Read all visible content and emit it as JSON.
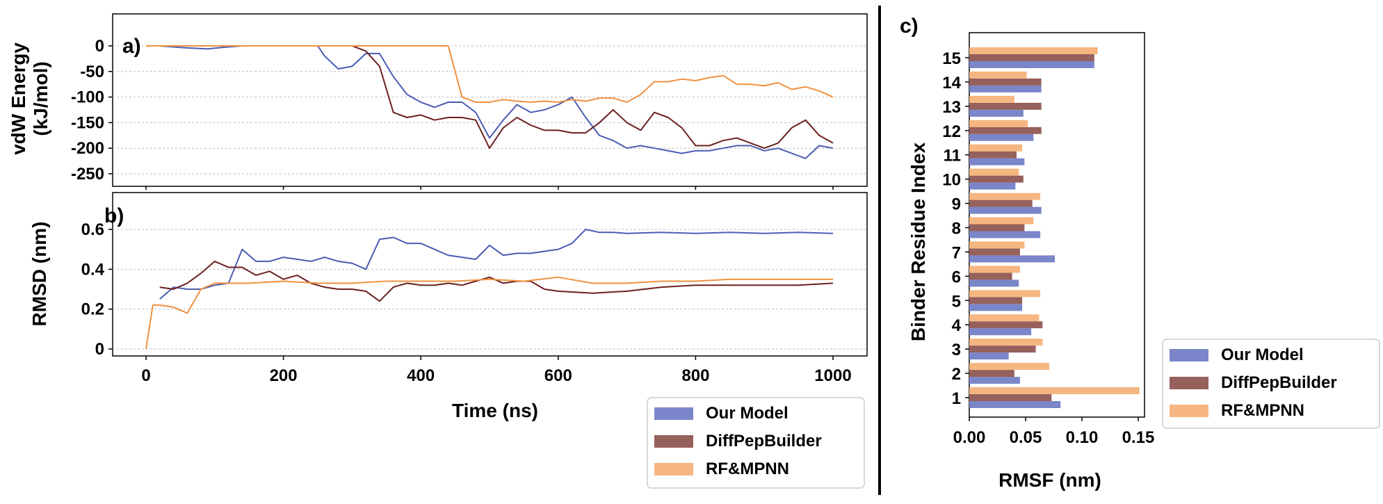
{
  "colors": {
    "our_model": "#4a5cb3",
    "our_model_legend": "#7a86c9",
    "diffpep": "#6b1f1f",
    "diffpep_legend": "#96605c",
    "rf": "#f0913f",
    "rf_legend": "#f5b681"
  },
  "legend_entries": [
    "Our Model",
    "DiffPepBuilder",
    "RF&MPNN"
  ],
  "chart_data": [
    {
      "id": "a",
      "type": "line",
      "panel_label": "a)",
      "ylabel_lines": [
        "vdW Energy",
        "(kJ/mol)"
      ],
      "xlim": [
        0,
        1000
      ],
      "ylim": [
        -250,
        0
      ],
      "yticks": [
        0,
        -50,
        -100,
        -150,
        -200,
        -250
      ],
      "grid": true,
      "series": [
        {
          "name": "Our Model",
          "x": [
            0,
            20,
            40,
            60,
            90,
            110,
            140,
            160,
            200,
            250,
            260,
            280,
            300,
            320,
            340,
            360,
            380,
            400,
            420,
            440,
            460,
            480,
            500,
            520,
            540,
            560,
            580,
            600,
            620,
            640,
            660,
            680,
            700,
            720,
            740,
            760,
            780,
            800,
            820,
            840,
            860,
            880,
            900,
            920,
            940,
            960,
            980,
            1000
          ],
          "y": [
            0,
            0,
            -2,
            -4,
            -6,
            -3,
            0,
            0,
            0,
            0,
            -20,
            -45,
            -40,
            -15,
            -15,
            -60,
            -95,
            -110,
            -120,
            -110,
            -110,
            -130,
            -180,
            -145,
            -115,
            -130,
            -125,
            -115,
            -100,
            -140,
            -175,
            -185,
            -200,
            -195,
            -200,
            -205,
            -210,
            -205,
            -205,
            -200,
            -195,
            -195,
            -205,
            -200,
            -210,
            -220,
            -195,
            -200
          ]
        },
        {
          "name": "DiffPepBuilder",
          "x": [
            0,
            50,
            100,
            150,
            200,
            250,
            300,
            320,
            340,
            360,
            380,
            400,
            420,
            440,
            460,
            480,
            500,
            520,
            540,
            560,
            580,
            600,
            620,
            640,
            660,
            680,
            700,
            720,
            740,
            760,
            780,
            800,
            820,
            840,
            860,
            880,
            900,
            920,
            940,
            960,
            980,
            1000
          ],
          "y": [
            0,
            0,
            0,
            0,
            0,
            0,
            0,
            -10,
            -40,
            -130,
            -140,
            -135,
            -145,
            -140,
            -140,
            -145,
            -200,
            -160,
            -140,
            -155,
            -165,
            -165,
            -170,
            -170,
            -150,
            -125,
            -150,
            -165,
            -130,
            -140,
            -160,
            -195,
            -195,
            -185,
            -180,
            -190,
            -200,
            -190,
            -160,
            -145,
            -175,
            -190
          ]
        },
        {
          "name": "RF&MPNN",
          "x": [
            0,
            100,
            200,
            300,
            440,
            460,
            480,
            500,
            520,
            540,
            560,
            580,
            600,
            620,
            640,
            660,
            680,
            700,
            720,
            740,
            760,
            780,
            800,
            820,
            840,
            860,
            880,
            900,
            920,
            940,
            960,
            980,
            1000
          ],
          "y": [
            0,
            0,
            0,
            0,
            0,
            -100,
            -110,
            -110,
            -105,
            -108,
            -110,
            -108,
            -110,
            -105,
            -108,
            -102,
            -102,
            -110,
            -95,
            -70,
            -70,
            -65,
            -68,
            -62,
            -58,
            -75,
            -75,
            -78,
            -72,
            -85,
            -80,
            -88,
            -100
          ]
        }
      ]
    },
    {
      "id": "b",
      "type": "line",
      "panel_label": "b)",
      "ylabel": "RMSD (nm)",
      "xlabel": "Time (ns)",
      "xlim": [
        0,
        1000
      ],
      "ylim": [
        0,
        0.6
      ],
      "xticks": [
        0,
        200,
        400,
        600,
        800,
        1000
      ],
      "yticks": [
        0.6,
        0.4,
        0.2,
        0
      ],
      "grid": true,
      "series": [
        {
          "name": "Our Model",
          "x": [
            20,
            40,
            60,
            80,
            100,
            120,
            140,
            160,
            180,
            200,
            220,
            240,
            260,
            280,
            300,
            320,
            340,
            360,
            380,
            400,
            420,
            440,
            460,
            480,
            500,
            520,
            540,
            560,
            580,
            600,
            620,
            640,
            660,
            680,
            700,
            750,
            800,
            850,
            900,
            950,
            1000
          ],
          "y": [
            0.25,
            0.31,
            0.3,
            0.3,
            0.32,
            0.33,
            0.5,
            0.44,
            0.44,
            0.46,
            0.45,
            0.44,
            0.46,
            0.44,
            0.43,
            0.4,
            0.55,
            0.56,
            0.53,
            0.53,
            0.5,
            0.47,
            0.46,
            0.45,
            0.52,
            0.47,
            0.48,
            0.48,
            0.49,
            0.5,
            0.53,
            0.6,
            0.585,
            0.585,
            0.58,
            0.585,
            0.58,
            0.585,
            0.58,
            0.585,
            0.58
          ]
        },
        {
          "name": "DiffPepBuilder",
          "x": [
            20,
            40,
            60,
            80,
            100,
            120,
            140,
            160,
            180,
            200,
            220,
            240,
            260,
            280,
            300,
            320,
            340,
            360,
            380,
            400,
            420,
            440,
            460,
            480,
            500,
            520,
            540,
            560,
            580,
            600,
            650,
            700,
            750,
            800,
            850,
            900,
            950,
            1000
          ],
          "y": [
            0.31,
            0.3,
            0.33,
            0.38,
            0.44,
            0.41,
            0.41,
            0.37,
            0.39,
            0.35,
            0.37,
            0.33,
            0.31,
            0.3,
            0.3,
            0.29,
            0.24,
            0.31,
            0.33,
            0.32,
            0.32,
            0.33,
            0.32,
            0.34,
            0.36,
            0.33,
            0.34,
            0.34,
            0.3,
            0.29,
            0.28,
            0.29,
            0.31,
            0.32,
            0.32,
            0.32,
            0.32,
            0.33
          ]
        },
        {
          "name": "RF&MPNN",
          "x": [
            0,
            10,
            20,
            40,
            60,
            80,
            100,
            150,
            200,
            250,
            300,
            350,
            400,
            450,
            500,
            550,
            600,
            650,
            700,
            750,
            800,
            850,
            900,
            950,
            1000
          ],
          "y": [
            0.0,
            0.22,
            0.22,
            0.21,
            0.18,
            0.3,
            0.33,
            0.33,
            0.34,
            0.33,
            0.33,
            0.34,
            0.34,
            0.34,
            0.35,
            0.34,
            0.36,
            0.33,
            0.33,
            0.34,
            0.34,
            0.35,
            0.35,
            0.35,
            0.35
          ]
        }
      ]
    },
    {
      "id": "c",
      "type": "bar",
      "orientation": "horizontal",
      "panel_label": "c)",
      "ylabel": "Binder Residue Index",
      "xlabel": "RMSF (nm)",
      "xlim": [
        0,
        0.16
      ],
      "xticks": [
        "0.00",
        "0.05",
        "0.10",
        "0.15"
      ],
      "categories": [
        "1",
        "2",
        "3",
        "4",
        "5",
        "6",
        "7",
        "8",
        "9",
        "10",
        "11",
        "12",
        "13",
        "14",
        "15"
      ],
      "series": [
        {
          "name": "Our Model",
          "values": [
            0.081,
            0.045,
            0.035,
            0.055,
            0.047,
            0.044,
            0.076,
            0.063,
            0.064,
            0.041,
            0.049,
            0.057,
            0.048,
            0.064,
            0.111
          ]
        },
        {
          "name": "DiffPepBuilder",
          "values": [
            0.073,
            0.04,
            0.059,
            0.065,
            0.047,
            0.038,
            0.045,
            0.049,
            0.056,
            0.048,
            0.042,
            0.064,
            0.064,
            0.064,
            0.111
          ]
        },
        {
          "name": "RF&MPNN",
          "values": [
            0.151,
            0.071,
            0.065,
            0.062,
            0.063,
            0.045,
            0.049,
            0.057,
            0.063,
            0.044,
            0.047,
            0.052,
            0.04,
            0.051,
            0.114
          ]
        }
      ]
    }
  ]
}
